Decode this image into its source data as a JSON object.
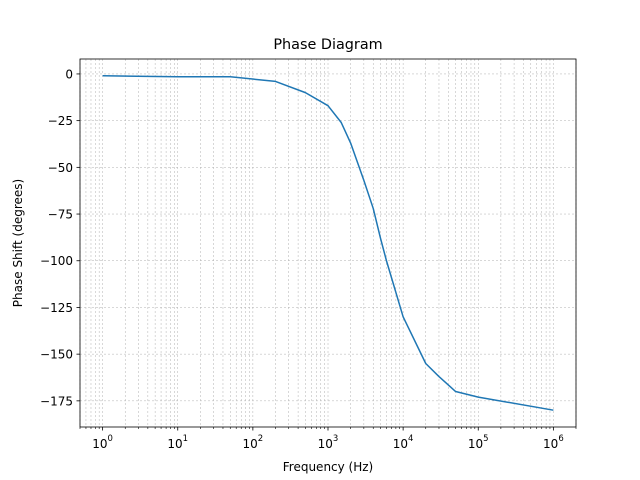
{
  "chart_data": {
    "type": "line",
    "title": "Phase Diagram",
    "xlabel": "Frequency (Hz)",
    "ylabel": "Phase Shift (degrees)",
    "x_scale": "log",
    "xlim": [
      0.5,
      2000000
    ],
    "ylim": [
      -189,
      8
    ],
    "grid": true,
    "x_ticks": [
      {
        "value": 1,
        "base": "10",
        "exp": "0"
      },
      {
        "value": 10,
        "base": "10",
        "exp": "1"
      },
      {
        "value": 100,
        "base": "10",
        "exp": "2"
      },
      {
        "value": 1000,
        "base": "10",
        "exp": "3"
      },
      {
        "value": 10000,
        "base": "10",
        "exp": "4"
      },
      {
        "value": 100000,
        "base": "10",
        "exp": "5"
      },
      {
        "value": 1000000,
        "base": "10",
        "exp": "6"
      }
    ],
    "y_ticks": [
      {
        "value": 0,
        "label": "0"
      },
      {
        "value": -25,
        "label": "−25"
      },
      {
        "value": -50,
        "label": "−50"
      },
      {
        "value": -75,
        "label": "−75"
      },
      {
        "value": -100,
        "label": "−100"
      },
      {
        "value": -125,
        "label": "−125"
      },
      {
        "value": -150,
        "label": "−150"
      },
      {
        "value": -175,
        "label": "−175"
      }
    ],
    "series": [
      {
        "color": "#1f77b4",
        "x": [
          1,
          10,
          50,
          200,
          500,
          1000,
          1500,
          2000,
          3000,
          4000,
          5000,
          6000,
          10000,
          20000,
          30000,
          50000,
          100000,
          1000000
        ],
        "y": [
          -1,
          -1.5,
          -1.5,
          -4,
          -10,
          -17,
          -26,
          -37,
          -57,
          -72,
          -88,
          -100,
          -130,
          -155,
          -162,
          -170,
          -173,
          -180
        ]
      }
    ]
  }
}
